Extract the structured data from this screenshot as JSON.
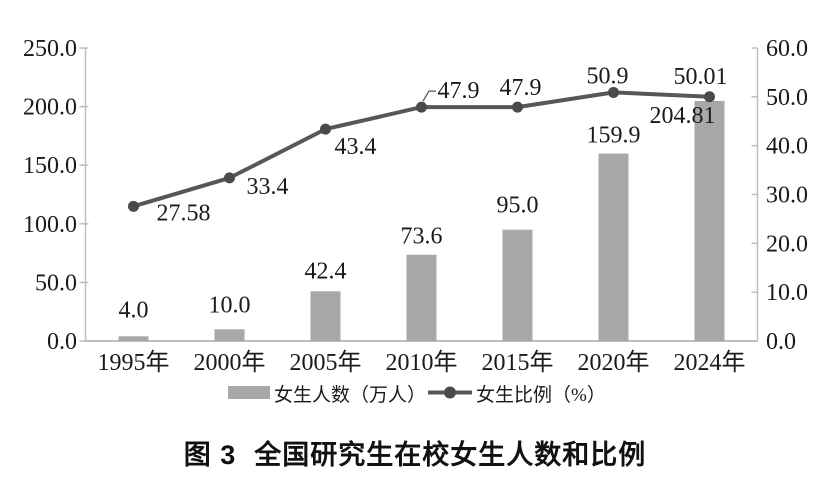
{
  "figure": {
    "caption_prefix": "图 3",
    "caption_title": "全国研究生在校女生人数和比例"
  },
  "colors": {
    "bar": "#a8a8a8",
    "line": "#575757",
    "marker": "#4a4a4a",
    "axis": "#bfbfbf",
    "label_text": "#1a1a1a"
  },
  "chart_data": {
    "type": "combo (bar + line, dual axis)",
    "title": "图 3 全国研究生在校女生人数和比例",
    "categories": [
      "1995年",
      "2000年",
      "2005年",
      "2010年",
      "2015年",
      "2020年",
      "2024年"
    ],
    "series": [
      {
        "name": "女生人数（万人）",
        "chart": "bar",
        "axis": "left",
        "values": [
          4.0,
          10.0,
          42.4,
          73.6,
          95.0,
          159.9,
          204.81
        ],
        "value_labels": [
          "4.0",
          "10.0",
          "42.4",
          "73.6",
          "95.0",
          "159.9",
          "204.81"
        ]
      },
      {
        "name": "女生比例（%）",
        "chart": "line",
        "axis": "right",
        "values": [
          27.58,
          33.4,
          43.4,
          47.9,
          47.9,
          50.9,
          50.01
        ],
        "value_labels": [
          "27.58",
          "33.4",
          "43.4",
          "47.9",
          "47.9",
          "50.9",
          "50.01"
        ]
      }
    ],
    "left_axis": {
      "min": 0,
      "max": 250,
      "step": 50,
      "tick_labels": [
        "0.0",
        "50.0",
        "100.0",
        "150.0",
        "200.0",
        "250.0"
      ]
    },
    "right_axis": {
      "min": 0,
      "max": 60,
      "step": 10,
      "tick_labels": [
        "0.0",
        "10.0",
        "20.0",
        "30.0",
        "40.0",
        "50.0",
        "60.0"
      ]
    },
    "legend": [
      "女生人数（万人）",
      "女生比例（%）"
    ],
    "legend_position": "bottom",
    "grid": false
  }
}
